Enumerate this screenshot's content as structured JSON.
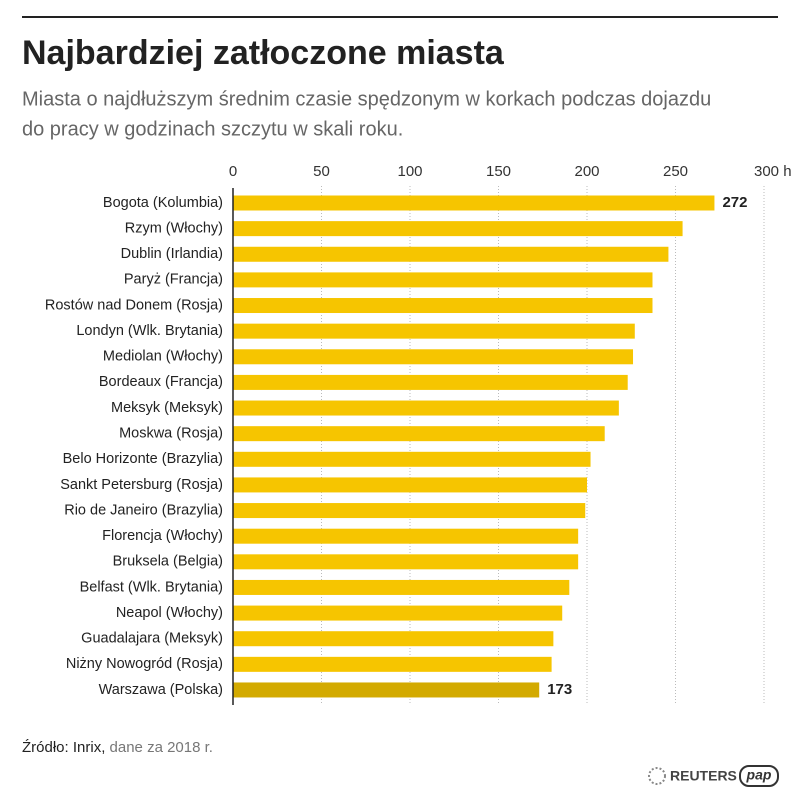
{
  "chart_data": {
    "type": "barh",
    "title": "Najbardziej zatłoczone miasta",
    "subtitle": [
      "Miasta o najdłuższym średnim czasie spędzonym w korkach podczas dojazdu",
      "do pracy w godzinach szczytu w skali roku."
    ],
    "categories": [
      "Bogota (Kolumbia)",
      "Rzym (Włochy)",
      "Dublin (Irlandia)",
      "Paryż (Francja)",
      "Rostów nad Donem (Rosja)",
      "Londyn (Wlk. Brytania)",
      "Mediolan (Włochy)",
      "Bordeaux (Francja)",
      "Meksyk (Meksyk)",
      "Moskwa (Rosja)",
      "Belo Horizonte (Brazylia)",
      "Sankt Petersburg (Rosja)",
      "Rio de Janeiro (Brazylia)",
      "Florencja (Włochy)",
      "Bruksela (Belgia)",
      "Belfast (Wlk. Brytania)",
      "Neapol (Włochy)",
      "Guadalajara (Meksyk)",
      "Niżny Nowogród (Rosja)",
      "Warszawa (Polska)"
    ],
    "values": [
      272,
      254,
      246,
      237,
      237,
      227,
      226,
      223,
      218,
      210,
      202,
      200,
      199,
      195,
      195,
      190,
      186,
      181,
      180,
      173
    ],
    "value_labels": [
      "272",
      null,
      null,
      null,
      null,
      null,
      null,
      null,
      null,
      null,
      null,
      null,
      null,
      null,
      null,
      null,
      null,
      null,
      null,
      "173"
    ],
    "colors": [
      "#f6c500",
      "#f6c500",
      "#f6c500",
      "#f6c500",
      "#f6c500",
      "#f6c500",
      "#f6c500",
      "#f6c500",
      "#f6c500",
      "#f6c500",
      "#f6c500",
      "#f6c500",
      "#f6c500",
      "#f6c500",
      "#f6c500",
      "#f6c500",
      "#f6c500",
      "#f6c500",
      "#f6c500",
      "#d3aa00"
    ],
    "xlim": [
      0,
      300
    ],
    "xticks": [
      0,
      50,
      100,
      150,
      200,
      250,
      {
        "value": 300,
        "label": "300 h"
      }
    ],
    "grid": true,
    "source": "Źródło: Inrix,",
    "source_note": "dane za 2018 r.",
    "logos": [
      "REUTERS",
      "pap"
    ]
  }
}
